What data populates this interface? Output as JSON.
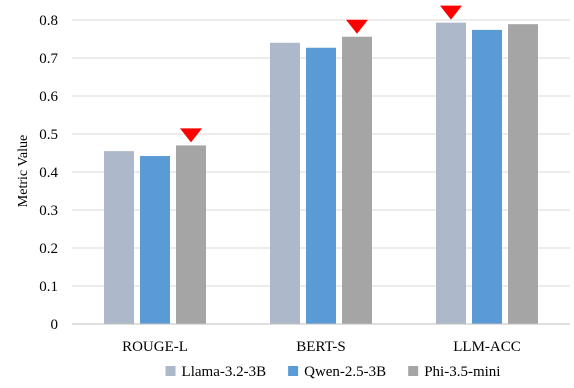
{
  "chart_data": {
    "type": "bar",
    "title": "",
    "xlabel": "",
    "ylabel": "Metric Value",
    "ylim": [
      0,
      0.8
    ],
    "yticks": [
      0,
      0.1,
      0.2,
      0.3,
      0.4,
      0.5,
      0.6,
      0.7,
      0.8
    ],
    "ytick_labels": [
      "0",
      "0.1",
      "0.2",
      "0.3",
      "0.4",
      "0.5",
      "0.6",
      "0.7",
      "0.8"
    ],
    "grid": true,
    "legend_position": "bottom",
    "categories": [
      "ROUGE-L",
      "BERT-S",
      "LLM-ACC"
    ],
    "series": [
      {
        "name": "Llama-3.2-3B",
        "color": "#adb9ca",
        "values": [
          0.455,
          0.74,
          0.793
        ]
      },
      {
        "name": "Qwen-2.5-3B",
        "color": "#5b9bd5",
        "values": [
          0.442,
          0.727,
          0.774
        ]
      },
      {
        "name": "Phi-3.5-mini",
        "color": "#a5a5a5",
        "values": [
          0.47,
          0.756,
          0.789
        ]
      }
    ],
    "best_marker": {
      "color": "#ff0000",
      "shape": "down-triangle",
      "best_series_index": [
        2,
        2,
        0
      ]
    }
  }
}
